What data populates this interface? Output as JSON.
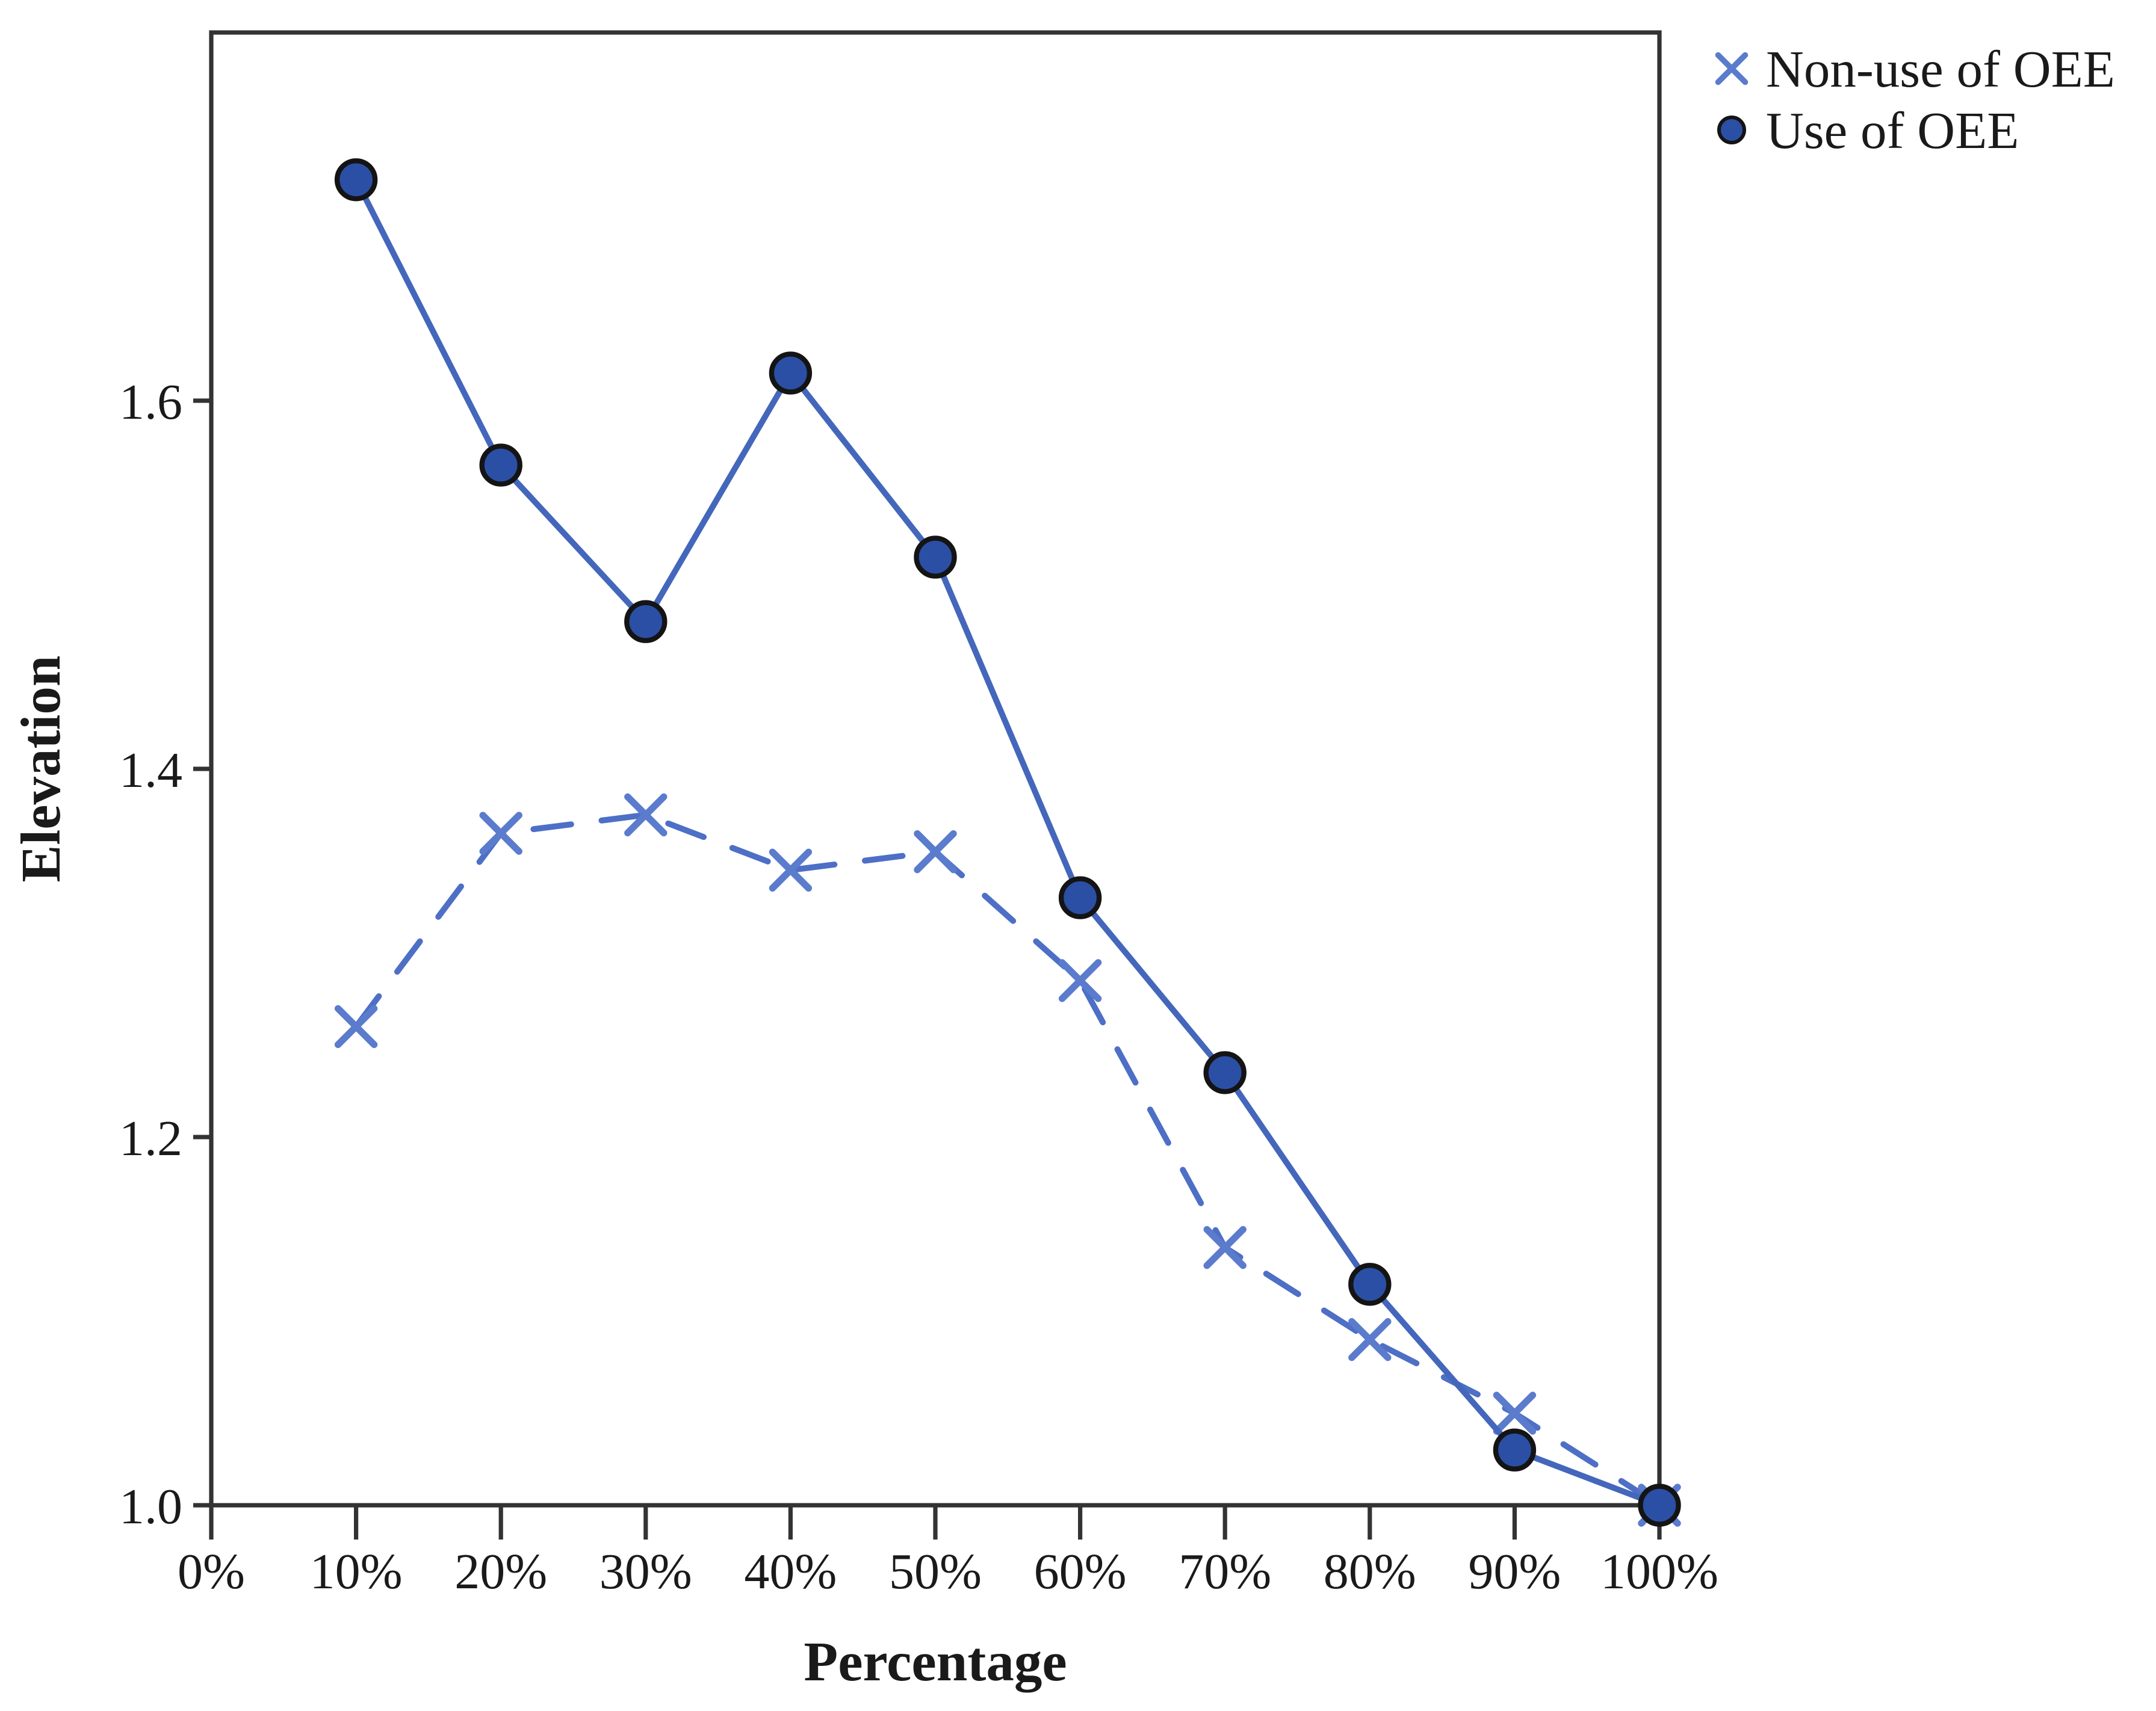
{
  "figure": {
    "background_color": "#ffffff",
    "axis_color": "#333333",
    "text_color": "#1a1a1a"
  },
  "chart_data": {
    "type": "line",
    "title": "",
    "xlabel": "Percentage",
    "ylabel": "Elevation",
    "xlim_percent": [
      0,
      100
    ],
    "ylim": [
      1.0,
      1.8
    ],
    "grid": false,
    "legend_position": "top-right-outside",
    "x_tick_labels": [
      "0%",
      "10%",
      "20%",
      "30%",
      "40%",
      "50%",
      "60%",
      "70%",
      "80%",
      "90%",
      "100%"
    ],
    "y_tick_labels": [
      "1.0",
      "1.2",
      "1.4",
      "1.6"
    ],
    "y_tick_values": [
      1.0,
      1.2,
      1.4,
      1.6
    ],
    "x_values_percent": [
      10,
      20,
      30,
      40,
      50,
      60,
      70,
      80,
      90,
      100
    ],
    "series": [
      {
        "name": "Non-use of OEE",
        "marker": "x",
        "line_style": "dashed",
        "line_color": "#4E6FC6",
        "marker_color": "#5B7BCD",
        "values": [
          1.26,
          1.365,
          1.375,
          1.345,
          1.355,
          1.285,
          1.14,
          1.09,
          1.05,
          1.0
        ]
      },
      {
        "name": "Use of OEE",
        "marker": "circle",
        "line_style": "solid",
        "line_color": "#4467BC",
        "marker_color": "#2B4FA5",
        "marker_stroke": "#141414",
        "values": [
          1.72,
          1.565,
          1.48,
          1.615,
          1.515,
          1.33,
          1.235,
          1.12,
          1.03,
          1.0
        ]
      }
    ]
  }
}
